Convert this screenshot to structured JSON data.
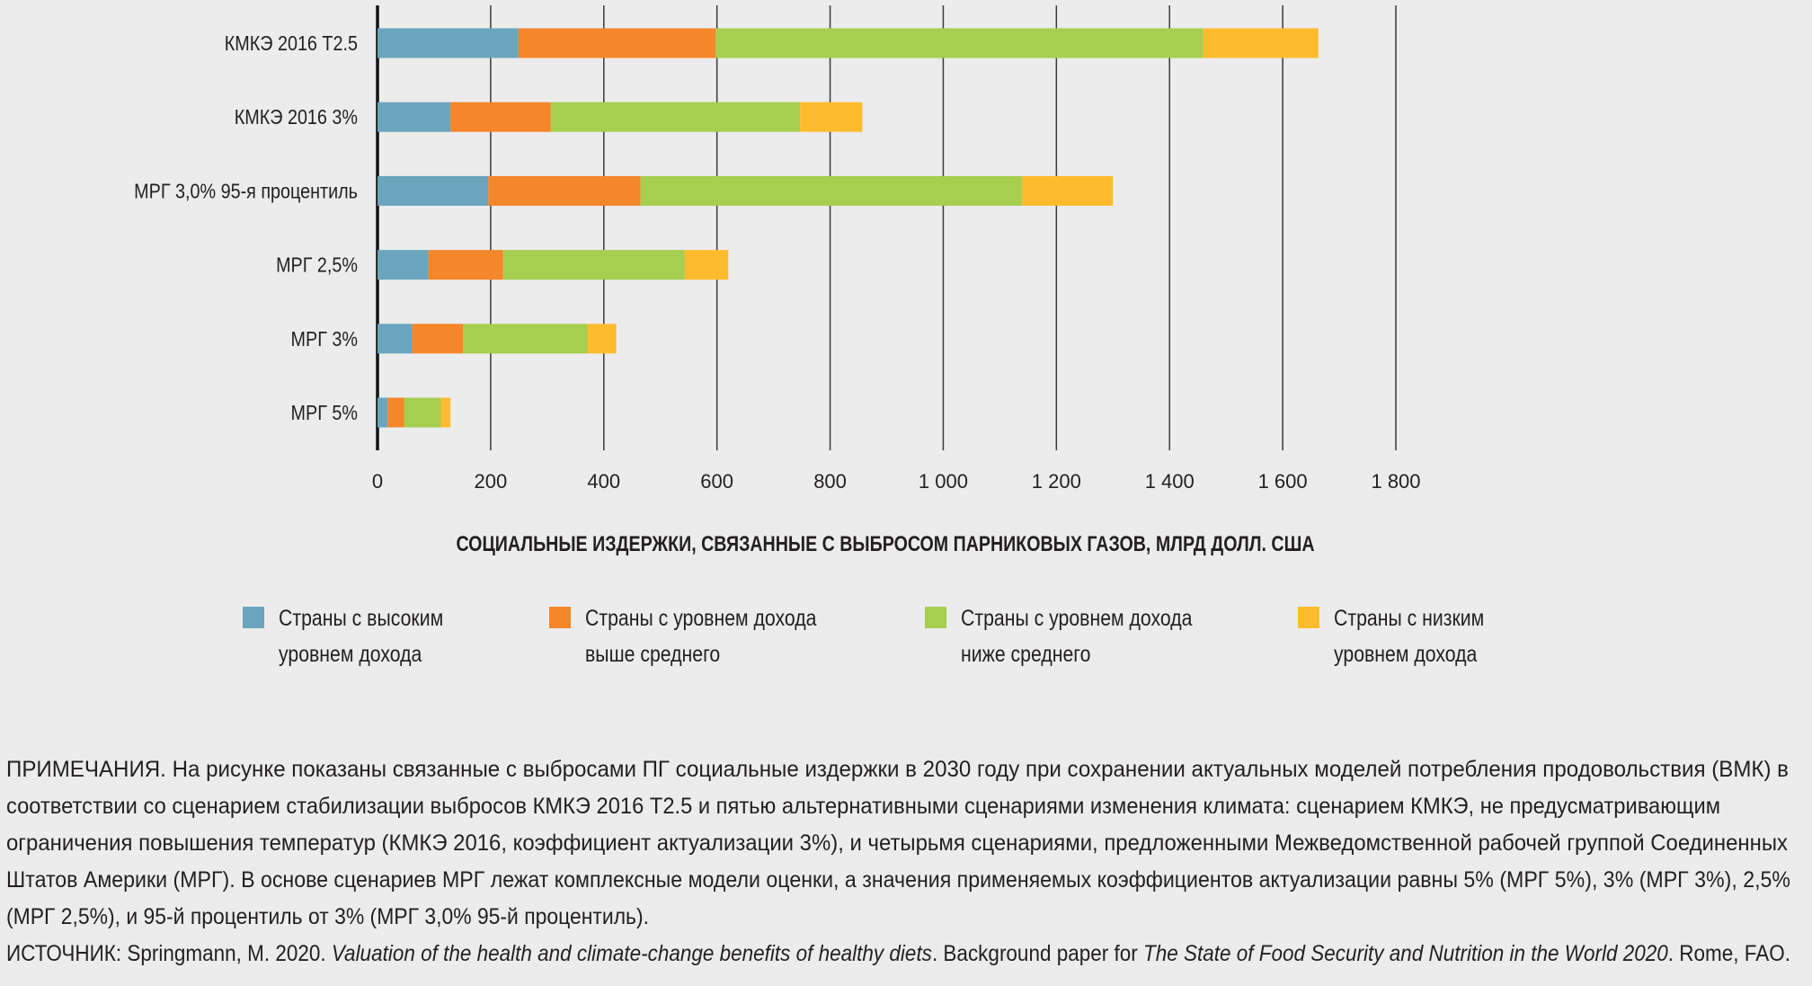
{
  "chart_data": {
    "type": "bar",
    "orientation": "horizontal",
    "stacked": true,
    "categories": [
      "КМКЭ 2016 Т2.5",
      "КМКЭ 2016 3%",
      "МРГ 3,0% 95-я процентиль",
      "МРГ 2,5%",
      "МРГ 3%",
      "МРГ 5%"
    ],
    "series": [
      {
        "name": "Страны с высоким уровнем дохода",
        "color": "#6aa5bd",
        "values": [
          249,
          129,
          196,
          90,
          61,
          18
        ]
      },
      {
        "name": "Страны с уровнем дохода выше среднего",
        "color": "#f5862a",
        "values": [
          349,
          177,
          269,
          132,
          90,
          29
        ]
      },
      {
        "name": "Страны с уровнем дохода ниже среднего",
        "color": "#a6ce4f",
        "values": [
          861,
          441,
          674,
          321,
          220,
          65
        ]
      },
      {
        "name": "Страны с низким уровнем дохода",
        "color": "#fdbb2e",
        "values": [
          204,
          110,
          161,
          77,
          51,
          17
        ]
      }
    ],
    "xlabel": "СОЦИАЛЬНЫЕ ИЗДЕРЖКИ, СВЯЗАННЫЕ С ВЫБРОСОМ ПАРНИКОВЫХ ГАЗОВ, МЛРД ДОЛЛ. США",
    "xlim": [
      0,
      1800
    ],
    "xticks": [
      0,
      200,
      400,
      600,
      800,
      1000,
      1200,
      1400,
      1600,
      1800
    ],
    "xtick_labels": [
      "0",
      "200",
      "400",
      "600",
      "800",
      "1 000",
      "1 200",
      "1 400",
      "1 600",
      "1 800"
    ],
    "grid": "vertical",
    "legend_position": "bottom"
  },
  "legend": [
    {
      "line1": "Страны с высоким",
      "line2": "уровнем дохода"
    },
    {
      "line1": "Страны с уровнем дохода",
      "line2": "выше среднего"
    },
    {
      "line1": "Страны с уровнем дохода",
      "line2": "ниже среднего"
    },
    {
      "line1": "Страны с низким",
      "line2": "уровнем дохода"
    }
  ],
  "notes": {
    "lines": [
      "ПРИМЕЧАНИЯ. На рисунке показаны связанные с выбросами ПГ социальные издержки в 2030 году при сохранении актуальных моделей потребления продовольствия (ВМК) в",
      "соответствии со сценарием стабилизации выбросов КМКЭ 2016 Т2.5 и пятью альтернативными сценариями изменения климата: сценарием КМКЭ, не предусматривающим",
      "ограничения повышения температур (КМКЭ 2016, коэффициент актуализации 3%), и четырьмя сценариями, предложенными Межведомственной рабочей группой Соединенных",
      "Штатов Америки (МРГ). В основе сценариев МРГ лежат комплексные модели оценки, а значения применяемых коэффициентов актуализации равны 5% (МРГ 5%), 3% (МРГ 3%), 2,5%",
      "(МРГ 2,5%), и 95-й процентиль от 3% (МРГ 3,0% 95-й процентиль)."
    ],
    "source": {
      "label": "ИСТОЧНИК: Springmann, M. 2020. ",
      "title1": "Valuation of the health and climate-change benefits of healthy diets",
      "mid": ". Background paper for ",
      "title2": "The State of Food Security and Nutrition in the World 2020",
      "end": ". Rome, FAO."
    }
  }
}
